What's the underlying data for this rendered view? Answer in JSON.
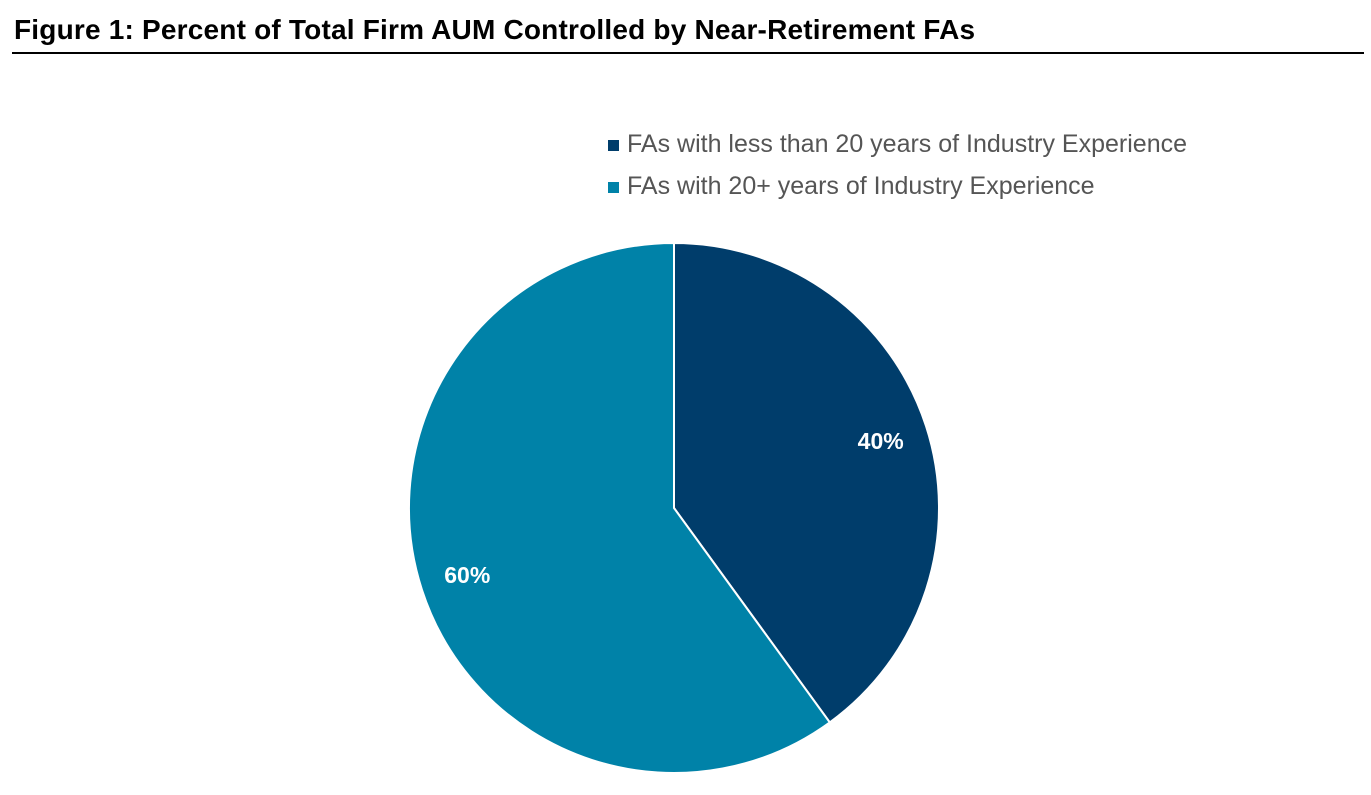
{
  "chart_data": {
    "type": "pie",
    "title": "Figure 1: Percent of Total Firm AUM Controlled by Near-Retirement FAs",
    "categories": [
      "FAs with less than 20 years of Industry Experience",
      "FAs with 20+ years of Industry Experience"
    ],
    "values": [
      40,
      60
    ],
    "data_labels": [
      "40%",
      "60%"
    ],
    "colors": [
      "#003d6b",
      "#0082a8"
    ],
    "legend_position": "top-right",
    "start_angle": "12 o'clock",
    "direction": "clockwise"
  }
}
